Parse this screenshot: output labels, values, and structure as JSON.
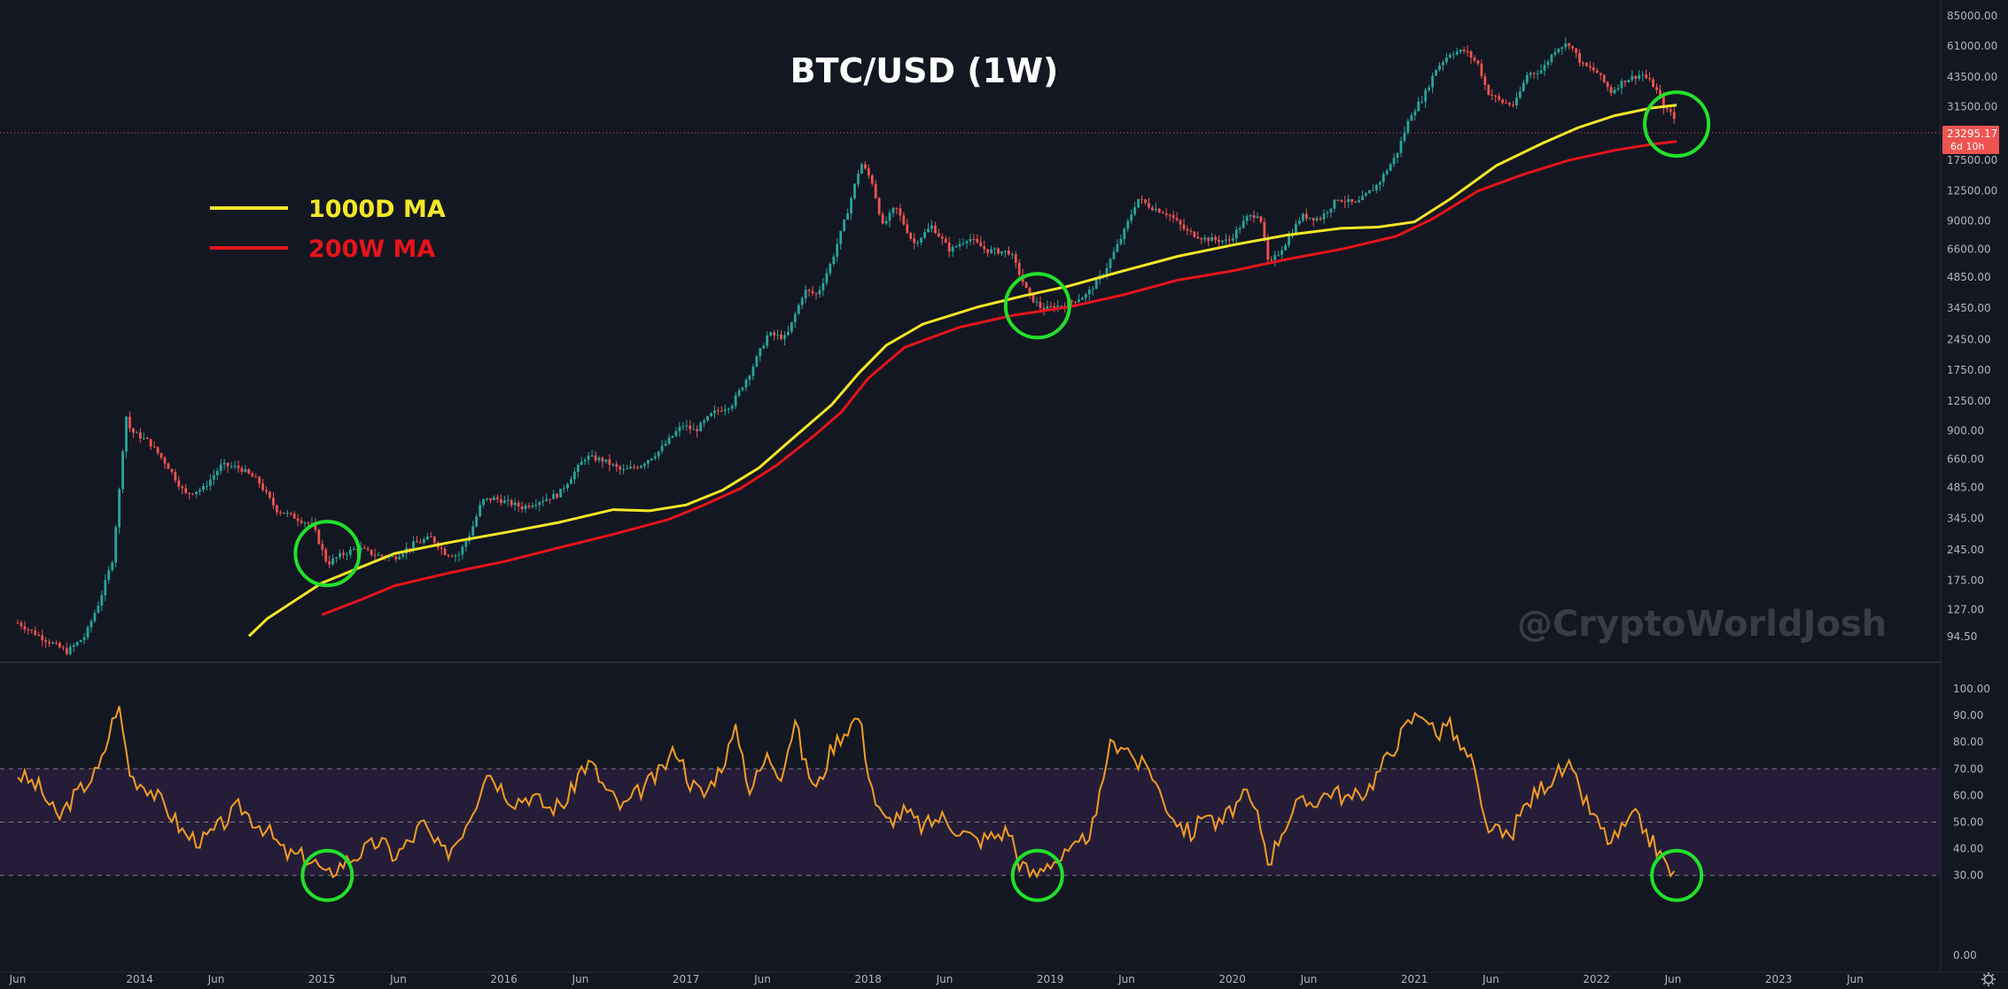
{
  "chart_data": {
    "title": "BTC/USD (1W)",
    "watermark": "@CryptoWorldJosh",
    "legend": [
      {
        "label": "1000D MA",
        "color": "#f5e727"
      },
      {
        "label": "200W MA",
        "color": "#e5141b"
      }
    ],
    "price_panel": {
      "type": "candlestick",
      "scale": "log",
      "y_ticks": [
        "85000.00",
        "61000.00",
        "43500.00",
        "31500.00",
        "17500.00",
        "12500.00",
        "9000.00",
        "6600.00",
        "4850.00",
        "3450.00",
        "2450.00",
        "1750.00",
        "1250.00",
        "900.00",
        "660.00",
        "485.00",
        "345.00",
        "245.00",
        "175.00",
        "127.00",
        "94.50"
      ],
      "current_price": "23295.17",
      "countdown": "6d 10h",
      "price_path": [
        [
          2013.33,
          110
        ],
        [
          2013.45,
          95
        ],
        [
          2013.6,
          80
        ],
        [
          2013.7,
          95
        ],
        [
          2013.78,
          140
        ],
        [
          2013.85,
          220
        ],
        [
          2013.9,
          600
        ],
        [
          2013.92,
          1100
        ],
        [
          2013.95,
          900
        ],
        [
          2014.05,
          800
        ],
        [
          2014.15,
          620
        ],
        [
          2014.25,
          450
        ],
        [
          2014.35,
          480
        ],
        [
          2014.45,
          620
        ],
        [
          2014.55,
          600
        ],
        [
          2014.65,
          520
        ],
        [
          2014.75,
          380
        ],
        [
          2014.85,
          350
        ],
        [
          2014.95,
          320
        ],
        [
          2015.03,
          210
        ],
        [
          2015.1,
          230
        ],
        [
          2015.2,
          250
        ],
        [
          2015.3,
          230
        ],
        [
          2015.4,
          225
        ],
        [
          2015.5,
          260
        ],
        [
          2015.6,
          280
        ],
        [
          2015.68,
          235
        ],
        [
          2015.75,
          230
        ],
        [
          2015.82,
          300
        ],
        [
          2015.88,
          420
        ],
        [
          2015.95,
          430
        ],
        [
          2016.1,
          390
        ],
        [
          2016.2,
          420
        ],
        [
          2016.3,
          450
        ],
        [
          2016.45,
          680
        ],
        [
          2016.55,
          650
        ],
        [
          2016.65,
          580
        ],
        [
          2016.75,
          620
        ],
        [
          2016.85,
          720
        ],
        [
          2016.98,
          960
        ],
        [
          2017.05,
          900
        ],
        [
          2017.15,
          1100
        ],
        [
          2017.25,
          1200
        ],
        [
          2017.35,
          1700
        ],
        [
          2017.45,
          2600
        ],
        [
          2017.55,
          2500
        ],
        [
          2017.65,
          4200
        ],
        [
          2017.72,
          4000
        ],
        [
          2017.8,
          5800
        ],
        [
          2017.88,
          9500
        ],
        [
          2017.96,
          17000
        ],
        [
          2018.02,
          14000
        ],
        [
          2018.08,
          8500
        ],
        [
          2018.15,
          10500
        ],
        [
          2018.25,
          7000
        ],
        [
          2018.35,
          8500
        ],
        [
          2018.45,
          6500
        ],
        [
          2018.55,
          7500
        ],
        [
          2018.65,
          6500
        ],
        [
          2018.78,
          6400
        ],
        [
          2018.88,
          4000
        ],
        [
          2018.96,
          3400
        ],
        [
          2019.08,
          3600
        ],
        [
          2019.2,
          4000
        ],
        [
          2019.3,
          5200
        ],
        [
          2019.4,
          7800
        ],
        [
          2019.48,
          11500
        ],
        [
          2019.55,
          10500
        ],
        [
          2019.65,
          9700
        ],
        [
          2019.75,
          8000
        ],
        [
          2019.85,
          7400
        ],
        [
          2019.98,
          7200
        ],
        [
          2020.08,
          9300
        ],
        [
          2020.15,
          9800
        ],
        [
          2020.2,
          5500
        ],
        [
          2020.28,
          6800
        ],
        [
          2020.38,
          9500
        ],
        [
          2020.48,
          9200
        ],
        [
          2020.58,
          11500
        ],
        [
          2020.68,
          10800
        ],
        [
          2020.8,
          13500
        ],
        [
          2020.9,
          18500
        ],
        [
          2020.98,
          29000
        ],
        [
          2021.05,
          35000
        ],
        [
          2021.12,
          48000
        ],
        [
          2021.2,
          57000
        ],
        [
          2021.28,
          58000
        ],
        [
          2021.35,
          50000
        ],
        [
          2021.4,
          37000
        ],
        [
          2021.48,
          33000
        ],
        [
          2021.55,
          32000
        ],
        [
          2021.62,
          45000
        ],
        [
          2021.7,
          47000
        ],
        [
          2021.78,
          60000
        ],
        [
          2021.85,
          63000
        ],
        [
          2021.92,
          50000
        ],
        [
          2022.0,
          46000
        ],
        [
          2022.08,
          37000
        ],
        [
          2022.15,
          42000
        ],
        [
          2022.25,
          45000
        ],
        [
          2022.32,
          39000
        ],
        [
          2022.38,
          30000
        ],
        [
          2022.42,
          29500
        ],
        [
          2022.44,
          23300
        ]
      ],
      "ma_1000d": [
        [
          2014.6,
          95
        ],
        [
          2014.7,
          115
        ],
        [
          2014.85,
          140
        ],
        [
          2015.0,
          170
        ],
        [
          2015.2,
          200
        ],
        [
          2015.4,
          235
        ],
        [
          2015.7,
          265
        ],
        [
          2016.0,
          295
        ],
        [
          2016.3,
          330
        ],
        [
          2016.6,
          380
        ],
        [
          2016.8,
          375
        ],
        [
          2017.0,
          400
        ],
        [
          2017.2,
          470
        ],
        [
          2017.4,
          600
        ],
        [
          2017.6,
          850
        ],
        [
          2017.8,
          1200
        ],
        [
          2017.95,
          1700
        ],
        [
          2018.1,
          2300
        ],
        [
          2018.3,
          2900
        ],
        [
          2018.6,
          3500
        ],
        [
          2018.85,
          3950
        ],
        [
          2019.1,
          4400
        ],
        [
          2019.4,
          5200
        ],
        [
          2019.7,
          6100
        ],
        [
          2020.0,
          6900
        ],
        [
          2020.3,
          7700
        ],
        [
          2020.6,
          8300
        ],
        [
          2020.8,
          8400
        ],
        [
          2021.0,
          8900
        ],
        [
          2021.2,
          11500
        ],
        [
          2021.45,
          16500
        ],
        [
          2021.7,
          21000
        ],
        [
          2021.9,
          25000
        ],
        [
          2022.1,
          28500
        ],
        [
          2022.3,
          31000
        ],
        [
          2022.44,
          32000
        ]
      ],
      "ma_200w": [
        [
          2015.0,
          120
        ],
        [
          2015.2,
          140
        ],
        [
          2015.4,
          165
        ],
        [
          2015.7,
          190
        ],
        [
          2016.0,
          215
        ],
        [
          2016.3,
          250
        ],
        [
          2016.6,
          290
        ],
        [
          2016.9,
          340
        ],
        [
          2017.1,
          400
        ],
        [
          2017.3,
          480
        ],
        [
          2017.5,
          620
        ],
        [
          2017.7,
          850
        ],
        [
          2017.85,
          1100
        ],
        [
          2018.0,
          1600
        ],
        [
          2018.2,
          2250
        ],
        [
          2018.5,
          2800
        ],
        [
          2018.8,
          3200
        ],
        [
          2019.1,
          3500
        ],
        [
          2019.4,
          4000
        ],
        [
          2019.7,
          4700
        ],
        [
          2020.0,
          5200
        ],
        [
          2020.3,
          5900
        ],
        [
          2020.6,
          6600
        ],
        [
          2020.9,
          7600
        ],
        [
          2021.1,
          9200
        ],
        [
          2021.35,
          12500
        ],
        [
          2021.6,
          15000
        ],
        [
          2021.85,
          17500
        ],
        [
          2022.1,
          19500
        ],
        [
          2022.3,
          20800
        ],
        [
          2022.44,
          21500
        ]
      ]
    },
    "rsi_panel": {
      "type": "line",
      "color": "#f39c24",
      "y_ticks": [
        "100.00",
        "90.00",
        "80.00",
        "70.00",
        "60.00",
        "50.00",
        "40.00",
        "30.00",
        "0.00"
      ],
      "band": [
        30,
        70
      ],
      "values": [
        [
          2013.33,
          68
        ],
        [
          2013.45,
          63
        ],
        [
          2013.55,
          51
        ],
        [
          2013.62,
          58
        ],
        [
          2013.7,
          64
        ],
        [
          2013.78,
          70
        ],
        [
          2013.88,
          95
        ],
        [
          2013.95,
          67
        ],
        [
          2014.05,
          63
        ],
        [
          2014.15,
          55
        ],
        [
          2014.25,
          45
        ],
        [
          2014.35,
          43
        ],
        [
          2014.45,
          49
        ],
        [
          2014.55,
          56
        ],
        [
          2014.62,
          51
        ],
        [
          2014.7,
          47
        ],
        [
          2014.8,
          38
        ],
        [
          2014.9,
          37
        ],
        [
          2014.98,
          34
        ],
        [
          2015.02,
          29
        ],
        [
          2015.08,
          33
        ],
        [
          2015.15,
          36
        ],
        [
          2015.25,
          40
        ],
        [
          2015.32,
          43
        ],
        [
          2015.4,
          37
        ],
        [
          2015.5,
          44
        ],
        [
          2015.55,
          50
        ],
        [
          2015.62,
          42
        ],
        [
          2015.68,
          38
        ],
        [
          2015.75,
          44
        ],
        [
          2015.85,
          58
        ],
        [
          2015.9,
          70
        ],
        [
          2015.95,
          66
        ],
        [
          2016.05,
          58
        ],
        [
          2016.15,
          60
        ],
        [
          2016.25,
          55
        ],
        [
          2016.35,
          58
        ],
        [
          2016.42,
          70
        ],
        [
          2016.48,
          72
        ],
        [
          2016.55,
          63
        ],
        [
          2016.65,
          55
        ],
        [
          2016.75,
          62
        ],
        [
          2016.85,
          68
        ],
        [
          2016.95,
          78
        ],
        [
          2017.02,
          65
        ],
        [
          2017.1,
          60
        ],
        [
          2017.2,
          72
        ],
        [
          2017.28,
          85
        ],
        [
          2017.35,
          62
        ],
        [
          2017.45,
          75
        ],
        [
          2017.52,
          68
        ],
        [
          2017.6,
          88
        ],
        [
          2017.65,
          72
        ],
        [
          2017.72,
          62
        ],
        [
          2017.8,
          78
        ],
        [
          2017.88,
          85
        ],
        [
          2017.95,
          90
        ],
        [
          2018.0,
          70
        ],
        [
          2018.05,
          55
        ],
        [
          2018.1,
          50
        ],
        [
          2018.2,
          54
        ],
        [
          2018.3,
          48
        ],
        [
          2018.4,
          52
        ],
        [
          2018.5,
          47
        ],
        [
          2018.6,
          43
        ],
        [
          2018.7,
          45
        ],
        [
          2018.78,
          47
        ],
        [
          2018.82,
          36
        ],
        [
          2018.88,
          31
        ],
        [
          2018.92,
          30
        ],
        [
          2018.98,
          35
        ],
        [
          2019.05,
          36
        ],
        [
          2019.15,
          40
        ],
        [
          2019.25,
          50
        ],
        [
          2019.32,
          78
        ],
        [
          2019.4,
          80
        ],
        [
          2019.48,
          72
        ],
        [
          2019.55,
          70
        ],
        [
          2019.62,
          58
        ],
        [
          2019.7,
          50
        ],
        [
          2019.78,
          45
        ],
        [
          2019.85,
          55
        ],
        [
          2019.92,
          48
        ],
        [
          2020.0,
          55
        ],
        [
          2020.08,
          60
        ],
        [
          2020.15,
          50
        ],
        [
          2020.2,
          35
        ],
        [
          2020.28,
          48
        ],
        [
          2020.35,
          56
        ],
        [
          2020.45,
          58
        ],
        [
          2020.55,
          62
        ],
        [
          2020.65,
          58
        ],
        [
          2020.75,
          63
        ],
        [
          2020.85,
          74
        ],
        [
          2020.92,
          82
        ],
        [
          2020.98,
          88
        ],
        [
          2021.05,
          92
        ],
        [
          2021.12,
          82
        ],
        [
          2021.18,
          88
        ],
        [
          2021.25,
          78
        ],
        [
          2021.32,
          72
        ],
        [
          2021.38,
          50
        ],
        [
          2021.45,
          46
        ],
        [
          2021.52,
          44
        ],
        [
          2021.6,
          55
        ],
        [
          2021.68,
          62
        ],
        [
          2021.78,
          68
        ],
        [
          2021.85,
          70
        ],
        [
          2021.92,
          60
        ],
        [
          2022.0,
          50
        ],
        [
          2022.08,
          42
        ],
        [
          2022.15,
          48
        ],
        [
          2022.22,
          52
        ],
        [
          2022.28,
          45
        ],
        [
          2022.33,
          40
        ],
        [
          2022.38,
          34
        ],
        [
          2022.44,
          28
        ]
      ]
    },
    "x_axis_labels": [
      {
        "t": 2013.33,
        "label": "Jun"
      },
      {
        "t": 2014.0,
        "label": "2014"
      },
      {
        "t": 2014.42,
        "label": "Jun"
      },
      {
        "t": 2015.0,
        "label": "2015"
      },
      {
        "t": 2015.42,
        "label": "Jun"
      },
      {
        "t": 2016.0,
        "label": "2016"
      },
      {
        "t": 2016.42,
        "label": "Jun"
      },
      {
        "t": 2017.0,
        "label": "2017"
      },
      {
        "t": 2017.42,
        "label": "Jun"
      },
      {
        "t": 2018.0,
        "label": "2018"
      },
      {
        "t": 2018.42,
        "label": "Jun"
      },
      {
        "t": 2019.0,
        "label": "2019"
      },
      {
        "t": 2019.42,
        "label": "Jun"
      },
      {
        "t": 2020.0,
        "label": "2020"
      },
      {
        "t": 2020.42,
        "label": "Jun"
      },
      {
        "t": 2021.0,
        "label": "2021"
      },
      {
        "t": 2021.42,
        "label": "Jun"
      },
      {
        "t": 2022.0,
        "label": "2022"
      },
      {
        "t": 2022.42,
        "label": "Jun"
      },
      {
        "t": 2023.0,
        "label": "2023"
      },
      {
        "t": 2023.42,
        "label": "Jun"
      }
    ],
    "highlights": [
      {
        "t": 2015.03,
        "price": 235,
        "rsi": 30
      },
      {
        "t": 2018.93,
        "price": 3550,
        "rsi": 30
      },
      {
        "t": 2022.44,
        "price": 26000,
        "rsi": 30
      }
    ],
    "colors": {
      "background": "#131722",
      "up": "#26a69a",
      "down": "#ef5350",
      "highlight": "#22e02b",
      "band": "#2a1f3d"
    }
  }
}
